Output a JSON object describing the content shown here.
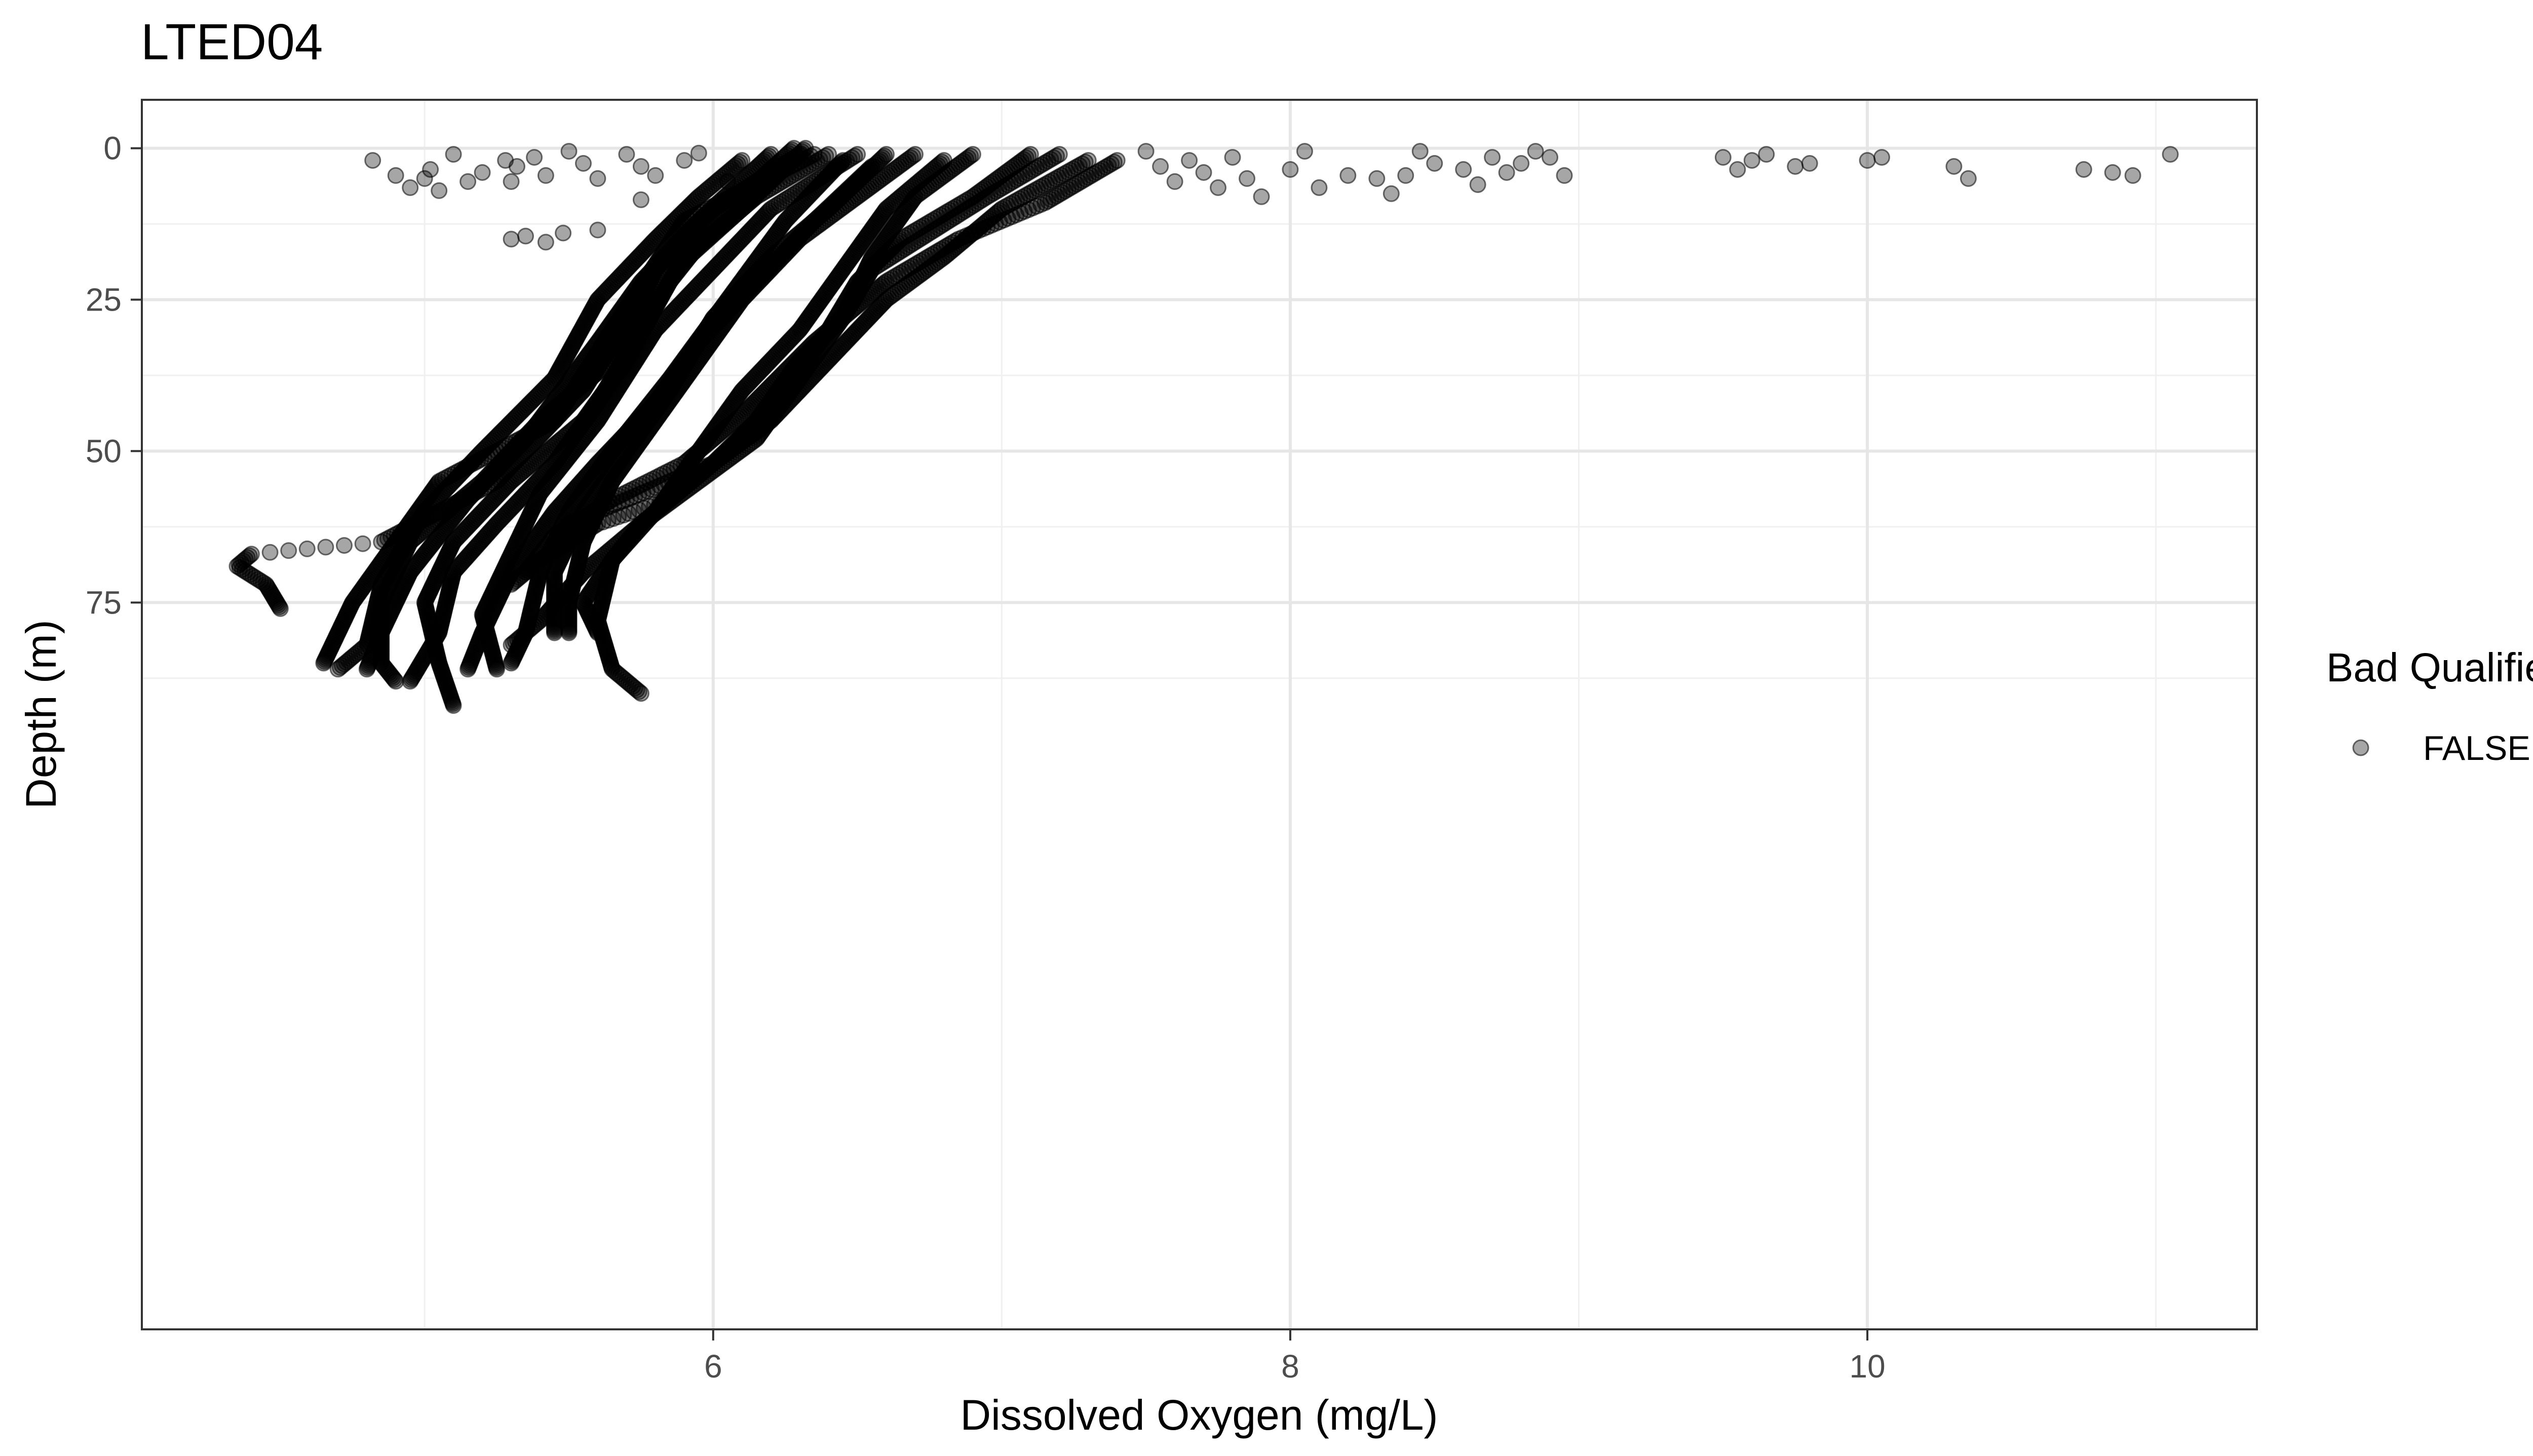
{
  "chart_data": {
    "type": "scatter",
    "title": "LTED04",
    "xlabel": "Dissolved Oxygen (mg/L)",
    "ylabel": "Depth (m)",
    "xlim": [
      4.02,
      11.35
    ],
    "ylim": [
      -8,
      195
    ],
    "y_reversed": true,
    "x_ticks": [
      6,
      8,
      10
    ],
    "y_ticks": [
      0,
      25,
      50,
      75
    ],
    "grid": true,
    "legend": {
      "title": "Bad Qualifier",
      "position": "right",
      "entries": [
        {
          "label": "FALSE",
          "color": "#000000",
          "opacity": 0.35
        }
      ]
    },
    "point_color": "#000000",
    "point_opacity": 0.35,
    "surface_outliers": [
      [
        4.82,
        2.0
      ],
      [
        4.9,
        4.5
      ],
      [
        4.95,
        6.5
      ],
      [
        5.0,
        5.0
      ],
      [
        5.02,
        3.5
      ],
      [
        5.05,
        7.0
      ],
      [
        5.1,
        1.0
      ],
      [
        5.15,
        5.5
      ],
      [
        5.2,
        4.0
      ],
      [
        5.28,
        2.0
      ],
      [
        5.3,
        5.5
      ],
      [
        5.32,
        3.0
      ],
      [
        5.38,
        1.5
      ],
      [
        5.42,
        4.5
      ],
      [
        5.5,
        0.5
      ],
      [
        5.55,
        2.5
      ],
      [
        5.6,
        5.0
      ],
      [
        5.7,
        1.0
      ],
      [
        5.75,
        3.0
      ],
      [
        5.8,
        4.5
      ],
      [
        5.9,
        2.0
      ],
      [
        5.95,
        0.8
      ],
      [
        6.05,
        5.5
      ],
      [
        5.3,
        15.0
      ],
      [
        5.35,
        14.5
      ],
      [
        5.42,
        15.5
      ],
      [
        5.48,
        14.0
      ],
      [
        5.6,
        13.5
      ],
      [
        5.75,
        8.5
      ],
      [
        7.5,
        0.5
      ],
      [
        7.55,
        3.0
      ],
      [
        7.6,
        5.5
      ],
      [
        7.65,
        2.0
      ],
      [
        7.7,
        4.0
      ],
      [
        7.75,
        6.5
      ],
      [
        7.8,
        1.5
      ],
      [
        7.85,
        5.0
      ],
      [
        7.9,
        8.0
      ],
      [
        8.0,
        3.5
      ],
      [
        8.05,
        0.5
      ],
      [
        8.1,
        6.5
      ],
      [
        8.2,
        4.5
      ],
      [
        8.3,
        5.0
      ],
      [
        8.35,
        7.5
      ],
      [
        8.4,
        4.5
      ],
      [
        8.45,
        0.5
      ],
      [
        8.5,
        2.5
      ],
      [
        8.6,
        3.5
      ],
      [
        8.65,
        6.0
      ],
      [
        8.7,
        1.5
      ],
      [
        8.75,
        4.0
      ],
      [
        8.8,
        2.5
      ],
      [
        8.85,
        0.5
      ],
      [
        8.9,
        1.5
      ],
      [
        8.95,
        4.5
      ],
      [
        9.5,
        1.5
      ],
      [
        9.55,
        3.5
      ],
      [
        9.6,
        2.0
      ],
      [
        9.65,
        1.0
      ],
      [
        9.75,
        3.0
      ],
      [
        9.8,
        2.5
      ],
      [
        10.0,
        2.0
      ],
      [
        10.05,
        1.5
      ],
      [
        10.3,
        3.0
      ],
      [
        10.35,
        5.0
      ],
      [
        10.75,
        3.5
      ],
      [
        10.85,
        4.0
      ],
      [
        10.92,
        4.5
      ],
      [
        11.05,
        1.0
      ]
    ],
    "series": [
      {
        "points": [
          [
            6.32,
            0
          ],
          [
            6.1,
            10
          ],
          [
            5.75,
            25
          ],
          [
            5.55,
            40
          ],
          [
            5.25,
            55
          ],
          [
            4.85,
            65
          ],
          [
            4.4,
            67
          ],
          [
            4.35,
            69
          ],
          [
            4.45,
            72
          ],
          [
            4.5,
            76
          ]
        ]
      },
      {
        "points": [
          [
            6.35,
            1
          ],
          [
            5.9,
            12
          ],
          [
            5.65,
            30
          ],
          [
            5.45,
            45
          ],
          [
            5.05,
            55
          ],
          [
            4.9,
            65
          ],
          [
            4.75,
            75
          ],
          [
            4.7,
            80
          ],
          [
            4.65,
            85
          ]
        ]
      },
      {
        "points": [
          [
            6.3,
            1
          ],
          [
            6.0,
            10
          ],
          [
            5.8,
            20
          ],
          [
            5.65,
            35
          ],
          [
            5.4,
            45
          ],
          [
            5.2,
            55
          ],
          [
            4.95,
            65
          ],
          [
            4.85,
            75
          ],
          [
            4.85,
            85
          ],
          [
            4.9,
            88
          ]
        ]
      },
      {
        "points": [
          [
            6.28,
            0
          ],
          [
            6.05,
            10
          ],
          [
            5.85,
            22
          ],
          [
            5.7,
            35
          ],
          [
            5.55,
            45
          ],
          [
            5.3,
            55
          ],
          [
            5.1,
            65
          ],
          [
            5.0,
            75
          ],
          [
            5.05,
            85
          ],
          [
            5.1,
            92
          ]
        ]
      },
      {
        "points": [
          [
            6.4,
            1
          ],
          [
            6.15,
            8
          ],
          [
            5.9,
            18
          ],
          [
            5.75,
            30
          ],
          [
            5.6,
            42
          ],
          [
            5.45,
            52
          ],
          [
            5.25,
            62
          ],
          [
            5.1,
            70
          ],
          [
            5.05,
            80
          ],
          [
            4.95,
            88
          ]
        ]
      },
      {
        "points": [
          [
            6.5,
            1
          ],
          [
            6.2,
            10
          ],
          [
            6.0,
            20
          ],
          [
            5.8,
            30
          ],
          [
            5.6,
            45
          ],
          [
            5.4,
            57
          ],
          [
            5.3,
            67
          ],
          [
            5.2,
            77
          ],
          [
            5.25,
            86
          ]
        ]
      },
      {
        "points": [
          [
            6.45,
            2
          ],
          [
            6.25,
            12
          ],
          [
            6.05,
            25
          ],
          [
            5.85,
            38
          ],
          [
            5.65,
            50
          ],
          [
            5.5,
            60
          ],
          [
            5.4,
            70
          ],
          [
            5.35,
            80
          ],
          [
            5.3,
            85
          ]
        ]
      },
      {
        "points": [
          [
            6.6,
            1
          ],
          [
            6.4,
            10
          ],
          [
            6.2,
            18
          ],
          [
            6.0,
            28
          ],
          [
            5.85,
            40
          ],
          [
            5.7,
            50
          ],
          [
            5.55,
            60
          ],
          [
            5.45,
            70
          ],
          [
            5.45,
            80
          ]
        ]
      },
      {
        "points": [
          [
            6.7,
            1
          ],
          [
            6.5,
            8
          ],
          [
            6.3,
            15
          ],
          [
            6.1,
            25
          ],
          [
            5.95,
            35
          ],
          [
            5.8,
            45
          ],
          [
            5.65,
            55
          ],
          [
            5.55,
            65
          ],
          [
            5.5,
            75
          ],
          [
            5.5,
            80
          ]
        ]
      },
      {
        "points": [
          [
            6.8,
            2
          ],
          [
            6.6,
            10
          ],
          [
            6.45,
            20
          ],
          [
            6.3,
            30
          ],
          [
            6.1,
            40
          ],
          [
            5.95,
            50
          ],
          [
            5.8,
            60
          ],
          [
            5.65,
            68
          ],
          [
            5.55,
            75
          ],
          [
            5.6,
            80
          ]
        ]
      },
      {
        "points": [
          [
            6.9,
            1
          ],
          [
            6.7,
            8
          ],
          [
            6.55,
            18
          ],
          [
            6.45,
            28
          ],
          [
            6.3,
            35
          ],
          [
            6.15,
            45
          ],
          [
            6.0,
            52
          ],
          [
            5.85,
            58
          ],
          [
            5.75,
            62
          ],
          [
            5.65,
            68
          ],
          [
            5.6,
            78
          ],
          [
            5.65,
            86
          ],
          [
            5.75,
            90
          ]
        ]
      },
      {
        "points": [
          [
            7.1,
            1
          ],
          [
            6.9,
            8
          ],
          [
            6.65,
            15
          ],
          [
            6.5,
            22
          ],
          [
            6.4,
            30
          ],
          [
            6.25,
            40
          ],
          [
            6.05,
            50
          ],
          [
            5.85,
            58
          ],
          [
            5.6,
            62
          ],
          [
            5.4,
            68
          ],
          [
            5.3,
            72
          ]
        ]
      },
      {
        "points": [
          [
            7.3,
            2
          ],
          [
            7.0,
            10
          ],
          [
            6.8,
            18
          ],
          [
            6.6,
            25
          ],
          [
            6.4,
            35
          ],
          [
            6.2,
            45
          ],
          [
            6.0,
            52
          ],
          [
            5.7,
            58
          ],
          [
            5.5,
            62
          ]
        ]
      },
      {
        "points": [
          [
            6.1,
            2
          ],
          [
            5.95,
            8
          ],
          [
            5.8,
            15
          ],
          [
            5.6,
            25
          ],
          [
            5.45,
            38
          ],
          [
            5.2,
            50
          ],
          [
            5.0,
            60
          ],
          [
            4.85,
            72
          ],
          [
            4.8,
            82
          ],
          [
            4.7,
            86
          ]
        ]
      },
      {
        "points": [
          [
            6.2,
            1
          ],
          [
            5.95,
            12
          ],
          [
            5.75,
            22
          ],
          [
            5.6,
            32
          ],
          [
            5.35,
            48
          ],
          [
            5.15,
            58
          ],
          [
            4.95,
            70
          ],
          [
            4.85,
            80
          ],
          [
            4.8,
            86
          ]
        ]
      },
      {
        "points": [
          [
            7.2,
            1
          ],
          [
            6.95,
            8
          ],
          [
            6.75,
            14
          ],
          [
            6.55,
            20
          ],
          [
            6.45,
            28
          ],
          [
            6.3,
            38
          ],
          [
            6.15,
            48
          ],
          [
            5.95,
            55
          ],
          [
            5.75,
            62
          ],
          [
            5.55,
            70
          ],
          [
            5.4,
            78
          ],
          [
            5.3,
            82
          ]
        ]
      },
      {
        "points": [
          [
            7.4,
            2
          ],
          [
            7.15,
            9
          ],
          [
            6.85,
            15
          ],
          [
            6.6,
            22
          ],
          [
            6.35,
            32
          ],
          [
            6.1,
            44
          ],
          [
            5.9,
            52
          ],
          [
            5.65,
            58
          ],
          [
            5.45,
            64
          ],
          [
            5.35,
            70
          ]
        ]
      },
      {
        "points": [
          [
            6.55,
            3
          ],
          [
            6.35,
            12
          ],
          [
            6.15,
            22
          ],
          [
            5.95,
            32
          ],
          [
            5.8,
            42
          ],
          [
            5.6,
            52
          ],
          [
            5.45,
            60
          ],
          [
            5.3,
            70
          ],
          [
            5.2,
            80
          ],
          [
            5.15,
            86
          ]
        ]
      }
    ]
  }
}
